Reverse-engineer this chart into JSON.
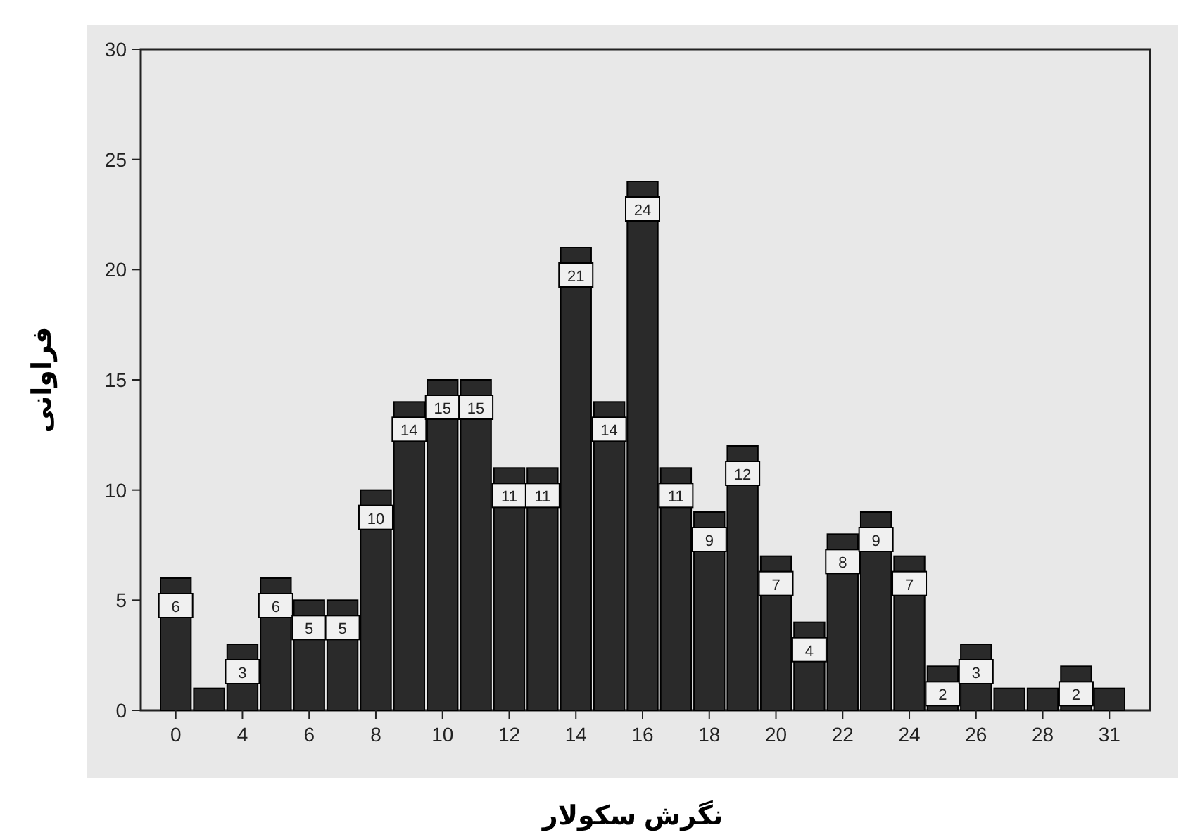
{
  "chart_data": {
    "type": "bar",
    "xlabel": "نگرش سکولار",
    "ylabel": "فراوانی",
    "categories": [
      "0",
      null,
      "4",
      null,
      "6",
      null,
      "8",
      null,
      "10",
      null,
      "12",
      null,
      "14",
      null,
      "16",
      null,
      "18",
      null,
      "20",
      null,
      "22",
      null,
      "24",
      null,
      "26",
      null,
      "28",
      null,
      "31"
    ],
    "values": [
      6,
      1,
      3,
      6,
      5,
      5,
      10,
      14,
      15,
      15,
      11,
      11,
      21,
      14,
      24,
      11,
      9,
      12,
      7,
      4,
      8,
      9,
      7,
      2,
      3,
      1,
      1,
      2,
      1
    ],
    "value_labels": [
      "6",
      null,
      "3",
      "6",
      "5",
      "5",
      "10",
      "14",
      "15",
      "15",
      "11",
      "11",
      "21",
      "14",
      "24",
      "11",
      "9",
      "12",
      "7",
      "4",
      "8",
      "9",
      "7",
      "2",
      "3",
      null,
      null,
      "2",
      null
    ],
    "color": "#2a2a2a",
    "ylim": [
      0,
      30
    ],
    "yticks": [
      0,
      5,
      10,
      15,
      20,
      25,
      30
    ]
  }
}
